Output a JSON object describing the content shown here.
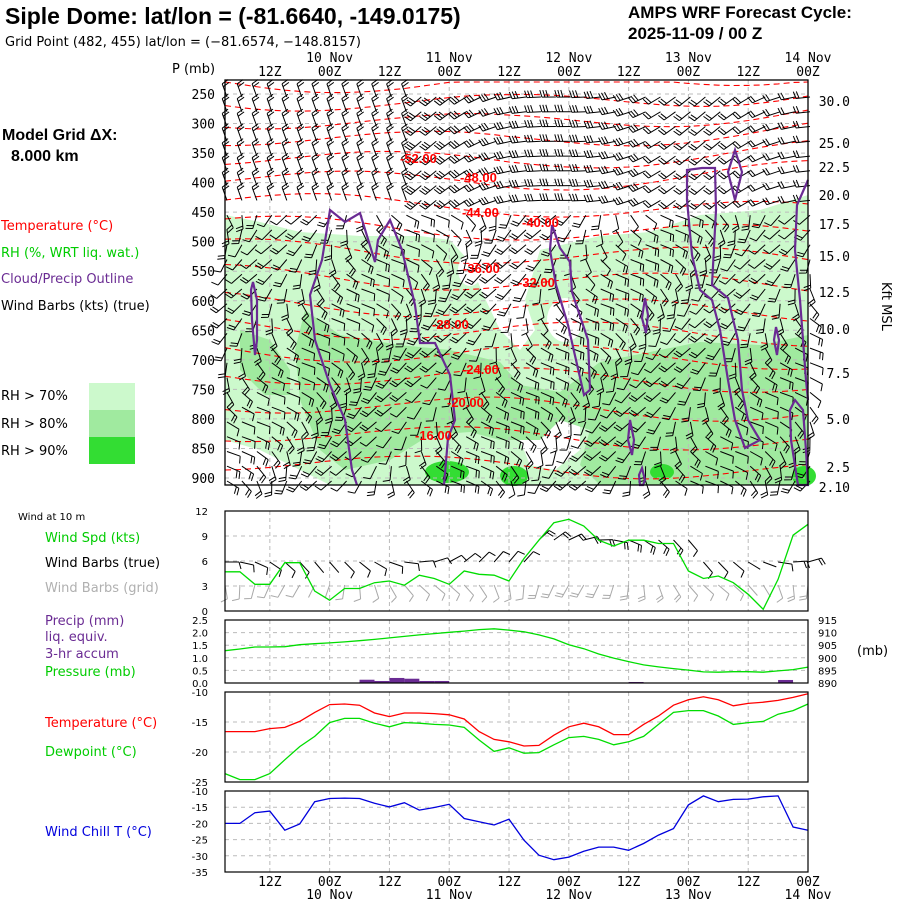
{
  "header": {
    "title": "Siple Dome:  lat/lon = (-81.6640, -149.0175)",
    "subtitle": "Grid Point (482, 455) lat/lon = (−81.6574, −148.8157)",
    "cycle_label": "AMPS WRF Forecast Cycle:",
    "cycle_value": "2025-11-09 / 00  Z"
  },
  "legend": {
    "grid_label": "Model Grid ΔX:",
    "grid_value": "8.000 km",
    "temperature": "Temperature (°C)",
    "rh": "RH (%, WRT liq. wat.)",
    "cloud": "Cloud/Precip Outline",
    "wind_barbs": "Wind Barbs (kts) (true)",
    "rh70": "RH > 70%",
    "rh80": "RH > 80%",
    "rh90": "RH > 90%",
    "wind10m": "Wind at 10 m",
    "wind_spd": "Wind Spd (kts)",
    "barbs_true": "Wind Barbs (true)",
    "barbs_grid": "Wind Barbs (grid)",
    "precip1": "Precip (mm)",
    "precip2": "liq. equiv.",
    "precip3": "3-hr accum",
    "pressure": "Pressure (mb)",
    "temp2": "Temperature (°C)",
    "dewpoint": "Dewpoint (°C)",
    "windchill": "Wind Chill T (°C)",
    "p_axis": "P (mb)",
    "kft_axis": "Kft MSL",
    "mb_unit": "(mb)"
  },
  "colors": {
    "temperature": "#ff0000",
    "dewpoint": "#00dd00",
    "rh70": "#ccf9cc",
    "rh80": "#a0ea9f",
    "rh90": "#33dd33",
    "cloud": "#6a2b93",
    "windchill": "#0000dd",
    "precip": "#6a2b93",
    "grid_barbs": "#a8a8a8"
  },
  "time_axis": {
    "hour_labels": [
      "12Z",
      "00Z",
      "12Z",
      "00Z",
      "12Z",
      "00Z",
      "12Z",
      "00Z",
      "12Z",
      "00Z"
    ],
    "date_labels": [
      "10 Nov",
      "11 Nov",
      "12 Nov",
      "13 Nov",
      "14 Nov"
    ]
  },
  "chart_data": [
    {
      "type": "heatmap",
      "name": "upper-air cross section",
      "y_axis_left": {
        "label": "P (mb)",
        "ticks": [
          "250",
          "300",
          "350",
          "400",
          "450",
          "500",
          "550",
          "600",
          "650",
          "700",
          "750",
          "800",
          "850",
          "900"
        ]
      },
      "y_axis_right": {
        "label": "Kft MSL",
        "ticks": [
          "30.0",
          "25.0",
          "22.5",
          "20.0",
          "17.5",
          "15.0",
          "12.5",
          "10.0",
          "7.5",
          "5.0",
          "2.5",
          "2.10"
        ]
      },
      "contour_labels": [
        "-52.00",
        "-48.00",
        "-44.00",
        "-40.00",
        "-36.00",
        "-32.00",
        "-28.00",
        "-24.00",
        "-20.00",
        "-16.00"
      ]
    },
    {
      "type": "line",
      "name": "wind speed 10 m",
      "forecast_hours": [
        3,
        6,
        9,
        12,
        15,
        18,
        21,
        24,
        27,
        30,
        33,
        36,
        39,
        42,
        45,
        48,
        51,
        54,
        57,
        60,
        63,
        66,
        69,
        72,
        75,
        78,
        81,
        84,
        87,
        90,
        93,
        96,
        99,
        102,
        105,
        108,
        111,
        114,
        117,
        120
      ],
      "ylim": [
        0,
        12
      ],
      "yticks": [
        "12",
        "9",
        "6",
        "3",
        "0"
      ],
      "series": [
        {
          "name": "Wind Spd (kts)",
          "values": [
            4.7,
            4.7,
            3.2,
            3.2,
            5.8,
            5.8,
            2.4,
            1.3,
            2.7,
            2.7,
            3.4,
            3.6,
            3.1,
            4.3,
            3.9,
            3.2,
            4.8,
            4.4,
            4.3,
            3.6,
            6.3,
            8.5,
            10.6,
            11.0,
            10.2,
            8.5,
            7.8,
            8.5,
            8.5,
            8.1,
            8.1,
            4.8,
            3.9,
            4.2,
            3.4,
            2.0,
            0.2,
            3.8,
            9.1,
            10.4
          ]
        }
      ]
    },
    {
      "type": "line",
      "name": "precip and pressure",
      "ylim": [
        0,
        2.5
      ],
      "yticks": [
        "2.5",
        "2.0",
        "1.5",
        "1.0",
        "0.5",
        "0.0"
      ],
      "y2lim": [
        890,
        915
      ],
      "y2ticks": [
        "915",
        "910",
        "905",
        "900",
        "895",
        "890"
      ],
      "series": [
        {
          "name": "Pressure (mb)",
          "values": [
            902.8,
            903.5,
            904.3,
            904.3,
            904.4,
            905.2,
            905.6,
            905.9,
            906.3,
            906.8,
            907.3,
            907.9,
            908.5,
            909.1,
            909.6,
            910.1,
            910.6,
            911.2,
            911.5,
            911.0,
            910.3,
            909.1,
            907.5,
            905.2,
            903.6,
            901.5,
            899.9,
            898.5,
            897.2,
            896.4,
            895.7,
            895.1,
            894.4,
            894.3,
            894.5,
            894.5,
            894.3,
            894.8,
            895.3,
            896.3
          ]
        }
      ],
      "precip_bars": [
        {
          "start_hour": 30,
          "value": 0.13
        },
        {
          "start_hour": 33,
          "value": 0.08
        },
        {
          "start_hour": 36,
          "value": 0.2
        },
        {
          "start_hour": 39,
          "value": 0.17
        },
        {
          "start_hour": 42,
          "value": 0.08
        },
        {
          "start_hour": 45,
          "value": 0.08
        },
        {
          "start_hour": 84,
          "value": 0.04
        },
        {
          "start_hour": 114,
          "value": 0.12
        }
      ]
    },
    {
      "type": "line",
      "name": "temperature and dewpoint",
      "ylim": [
        -25,
        -10
      ],
      "yticks": [
        "-10",
        "-15",
        "-20",
        "-25"
      ],
      "series": [
        {
          "name": "Temperature (°C)",
          "values": [
            -16.6,
            -16.6,
            -16.6,
            -16.1,
            -15.9,
            -14.9,
            -13.4,
            -12.1,
            -12.0,
            -12.2,
            -13.5,
            -14.1,
            -13.5,
            -13.5,
            -13.6,
            -13.8,
            -14.5,
            -16.6,
            -17.9,
            -18.3,
            -19.0,
            -18.9,
            -17.2,
            -15.8,
            -15.2,
            -15.8,
            -17.1,
            -17.1,
            -15.4,
            -14.0,
            -12.2,
            -11.3,
            -10.8,
            -11.3,
            -12.3,
            -11.9,
            -11.7,
            -11.4,
            -10.9,
            -10.3
          ]
        },
        {
          "name": "Dewpoint (°C)",
          "values": [
            -23.6,
            -24.6,
            -24.6,
            -23.6,
            -21.3,
            -19.1,
            -17.4,
            -15.1,
            -14.4,
            -14.4,
            -15.2,
            -15.8,
            -15.1,
            -15.2,
            -15.4,
            -15.5,
            -15.9,
            -18.0,
            -19.9,
            -19.3,
            -20.2,
            -20.1,
            -18.8,
            -17.6,
            -17.4,
            -17.9,
            -18.8,
            -18.3,
            -17.4,
            -15.4,
            -13.4,
            -13.1,
            -13.1,
            -14.0,
            -15.4,
            -15.1,
            -14.9,
            -13.7,
            -13.1,
            -12.0
          ]
        }
      ]
    },
    {
      "type": "line",
      "name": "wind chill",
      "ylim": [
        -35,
        -10
      ],
      "yticks": [
        "-10",
        "-15",
        "-20",
        "-25",
        "-30",
        "-35"
      ],
      "series": [
        {
          "name": "Wind Chill T (°C)",
          "values": [
            -20,
            -20,
            -16.7,
            -16.2,
            -22.1,
            -20.2,
            -13.3,
            -12.3,
            -12.2,
            -12.3,
            -13.8,
            -14.9,
            -13.6,
            -15.9,
            -15.1,
            -14.1,
            -18.5,
            -19.5,
            -20.5,
            -18.7,
            -25.2,
            -29.8,
            -31.2,
            -30.4,
            -28.6,
            -27.3,
            -27.3,
            -28.3,
            -26.2,
            -23.6,
            -21.6,
            -14.3,
            -11.5,
            -13.3,
            -12.6,
            -12.5,
            -11.8,
            -11.5,
            -21.1,
            -22.1
          ]
        }
      ]
    }
  ]
}
